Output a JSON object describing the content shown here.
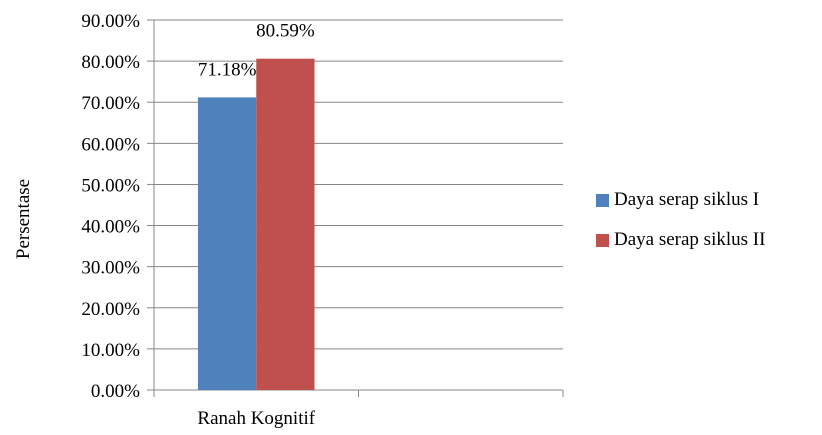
{
  "chart_data": {
    "type": "bar",
    "categories": [
      "Ranah Kognitif",
      ""
    ],
    "series": [
      {
        "name": "Daya serap siklus I",
        "values": [
          71.18,
          null
        ],
        "color": "#4F81BD"
      },
      {
        "name": "Daya serap siklus II",
        "values": [
          80.59,
          null
        ],
        "color": "#C0504D"
      }
    ],
    "data_labels": [
      "71.18%",
      "80.59%"
    ],
    "title": "",
    "xlabel": "",
    "ylabel": "Persentase",
    "ylim": [
      0,
      90
    ],
    "yticks": [
      0,
      10,
      20,
      30,
      40,
      50,
      60,
      70,
      80,
      90
    ],
    "ytick_labels": [
      "0.00%",
      "10.00%",
      "20.00%",
      "30.00%",
      "40.00%",
      "50.00%",
      "60.00%",
      "70.00%",
      "80.00%",
      "90.00%"
    ],
    "grid": true,
    "legend": "right"
  }
}
